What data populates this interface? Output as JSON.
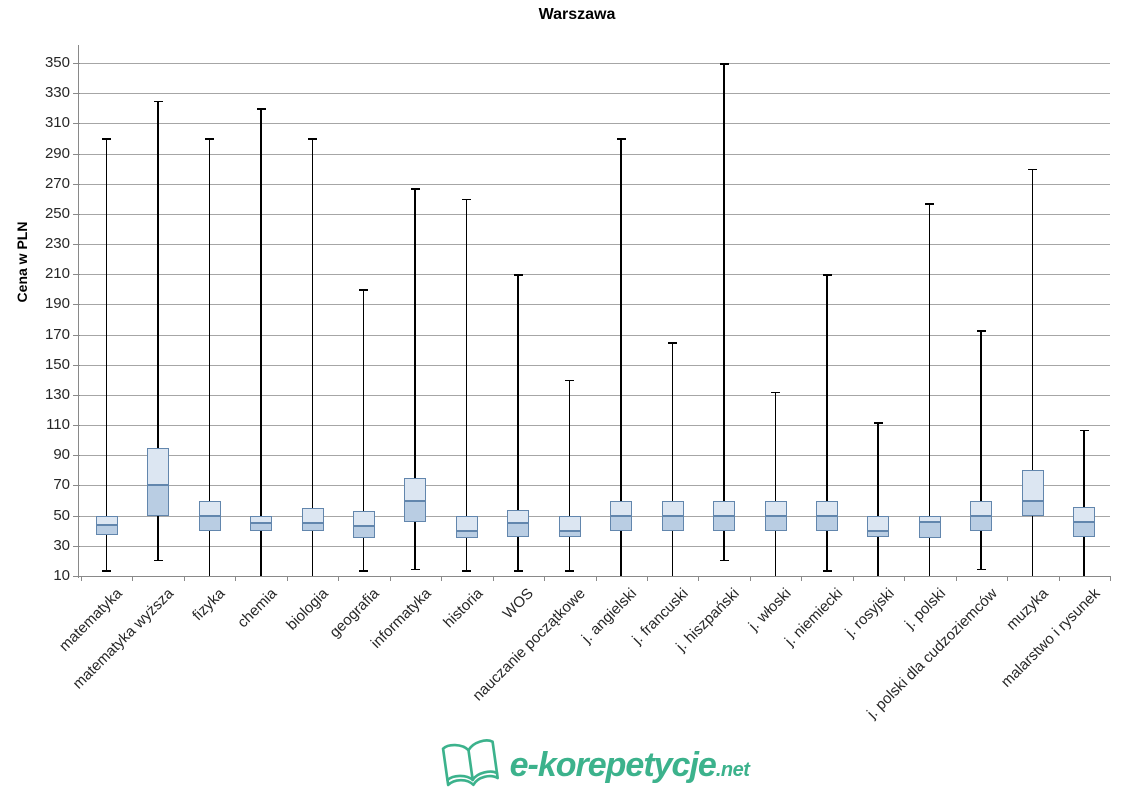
{
  "title": "Warszawa",
  "y_axis_label": "Cena w PLN",
  "branding": {
    "name": "e-korepetycje",
    "suffix": ".net",
    "icon": "open-book-icon",
    "color": "#3cb28c"
  },
  "colors": {
    "box_fill_upper": "#dce6f2",
    "box_fill_lower": "#b9cde3",
    "box_border": "#6286ad",
    "median_line": "#6286ad",
    "whisker": "#000000",
    "gridline": "#a6a6a6",
    "axis": "#898989",
    "tick_text": "#262626",
    "title_text": "#000000"
  },
  "chart_data": {
    "type": "boxplot",
    "title": "Warszawa",
    "xlabel": "",
    "ylabel": "Cena w PLN",
    "ylim": [
      10,
      350
    ],
    "ytick_step": 20,
    "grid": true,
    "legend": false,
    "yticks": [
      350,
      330,
      310,
      290,
      270,
      250,
      230,
      210,
      190,
      170,
      150,
      130,
      110,
      90,
      70,
      50,
      30,
      10
    ],
    "categories": [
      "matematyka",
      "matematyka wyższa",
      "fizyka",
      "chemia",
      "biologia",
      "geografia",
      "informatyka",
      "historia",
      "WOS",
      "nauczanie początkowe",
      "j. angielski",
      "j. francuski",
      "j. hiszpański",
      "j. włoski",
      "j. niemiecki",
      "j. rosyjski",
      "j. polski",
      "j. polski dla cudzoziemców",
      "muzyka",
      "malarstwo i rysunek"
    ],
    "boxes": [
      {
        "label": "matematyka",
        "min": 13,
        "q1": 37,
        "median": 44,
        "q3": 50,
        "max": 300
      },
      {
        "label": "matematyka wyższa",
        "min": 20,
        "q1": 50,
        "median": 70,
        "q3": 95,
        "max": 325
      },
      {
        "label": "fizyka",
        "min": 10,
        "q1": 40,
        "median": 50,
        "q3": 60,
        "max": 300
      },
      {
        "label": "chemia",
        "min": 10,
        "q1": 40,
        "median": 45,
        "q3": 50,
        "max": 320
      },
      {
        "label": "biologia",
        "min": 10,
        "q1": 40,
        "median": 45,
        "q3": 55,
        "max": 300
      },
      {
        "label": "geografia",
        "min": 13,
        "q1": 35,
        "median": 43,
        "q3": 53,
        "max": 200
      },
      {
        "label": "informatyka",
        "min": 14,
        "q1": 46,
        "median": 60,
        "q3": 75,
        "max": 267
      },
      {
        "label": "historia",
        "min": 13,
        "q1": 35,
        "median": 40,
        "q3": 50,
        "max": 260
      },
      {
        "label": "WOS",
        "min": 13,
        "q1": 36,
        "median": 45,
        "q3": 54,
        "max": 210
      },
      {
        "label": "nauczanie początkowe",
        "min": 13,
        "q1": 36,
        "median": 40,
        "q3": 50,
        "max": 140
      },
      {
        "label": "j. angielski",
        "min": 10,
        "q1": 40,
        "median": 50,
        "q3": 60,
        "max": 300
      },
      {
        "label": "j. francuski",
        "min": 10,
        "q1": 40,
        "median": 50,
        "q3": 60,
        "max": 165
      },
      {
        "label": "j. hiszpański",
        "min": 20,
        "q1": 40,
        "median": 50,
        "q3": 60,
        "max": 350
      },
      {
        "label": "j. włoski",
        "min": 10,
        "q1": 40,
        "median": 50,
        "q3": 60,
        "max": 132
      },
      {
        "label": "j. niemiecki",
        "min": 13,
        "q1": 40,
        "median": 50,
        "q3": 60,
        "max": 210
      },
      {
        "label": "j. rosyjski",
        "min": 10,
        "q1": 36,
        "median": 40,
        "q3": 50,
        "max": 112
      },
      {
        "label": "j. polski",
        "min": 10,
        "q1": 35,
        "median": 46,
        "q3": 50,
        "max": 257
      },
      {
        "label": "j. polski dla cudzoziemców",
        "min": 14,
        "q1": 40,
        "median": 50,
        "q3": 60,
        "max": 173
      },
      {
        "label": "muzyka",
        "min": 10,
        "q1": 50,
        "median": 60,
        "q3": 80,
        "max": 280
      },
      {
        "label": "malarstwo i rysunek",
        "min": 10,
        "q1": 36,
        "median": 46,
        "q3": 56,
        "max": 107
      }
    ]
  }
}
